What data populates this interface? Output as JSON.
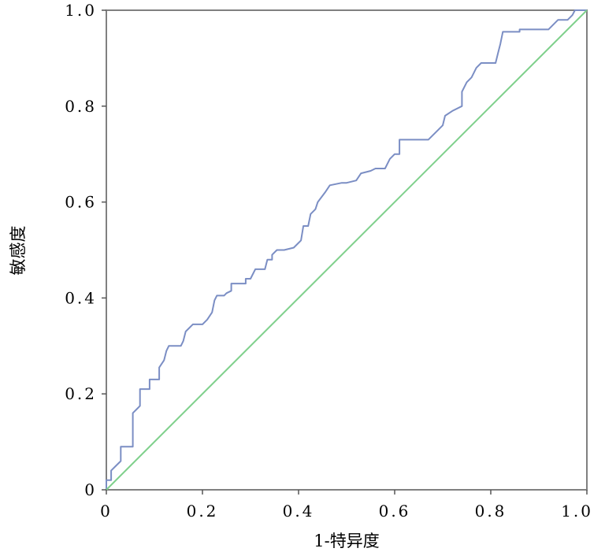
{
  "chart_data": {
    "type": "line",
    "title": "",
    "xlabel": "1-特异度",
    "ylabel": "敏感度",
    "xlim": [
      0,
      1
    ],
    "ylim": [
      0,
      1
    ],
    "x_ticks": [
      "0",
      "0.2",
      "0.4",
      "0.6",
      "0.8",
      "1.0"
    ],
    "y_ticks": [
      "0",
      "0.2",
      "0.4",
      "0.6",
      "0.8",
      "1.0"
    ],
    "grid": false,
    "legend": "none",
    "series": [
      {
        "color": "#7b8ec4",
        "points": [
          [
            0,
            0
          ],
          [
            0,
            0.02
          ],
          [
            0.01,
            0.02
          ],
          [
            0.01,
            0.04
          ],
          [
            0.02,
            0.05
          ],
          [
            0.03,
            0.06
          ],
          [
            0.03,
            0.09
          ],
          [
            0.055,
            0.09
          ],
          [
            0.055,
            0.16
          ],
          [
            0.065,
            0.17
          ],
          [
            0.07,
            0.175
          ],
          [
            0.07,
            0.21
          ],
          [
            0.09,
            0.21
          ],
          [
            0.09,
            0.23
          ],
          [
            0.11,
            0.23
          ],
          [
            0.11,
            0.255
          ],
          [
            0.12,
            0.27
          ],
          [
            0.125,
            0.29
          ],
          [
            0.13,
            0.3
          ],
          [
            0.155,
            0.3
          ],
          [
            0.16,
            0.31
          ],
          [
            0.165,
            0.33
          ],
          [
            0.18,
            0.345
          ],
          [
            0.2,
            0.345
          ],
          [
            0.21,
            0.355
          ],
          [
            0.22,
            0.37
          ],
          [
            0.225,
            0.395
          ],
          [
            0.23,
            0.405
          ],
          [
            0.245,
            0.405
          ],
          [
            0.25,
            0.41
          ],
          [
            0.26,
            0.415
          ],
          [
            0.26,
            0.43
          ],
          [
            0.29,
            0.43
          ],
          [
            0.29,
            0.44
          ],
          [
            0.3,
            0.44
          ],
          [
            0.31,
            0.46
          ],
          [
            0.33,
            0.46
          ],
          [
            0.335,
            0.48
          ],
          [
            0.345,
            0.48
          ],
          [
            0.345,
            0.49
          ],
          [
            0.355,
            0.5
          ],
          [
            0.37,
            0.5
          ],
          [
            0.39,
            0.505
          ],
          [
            0.405,
            0.52
          ],
          [
            0.41,
            0.55
          ],
          [
            0.42,
            0.55
          ],
          [
            0.425,
            0.575
          ],
          [
            0.435,
            0.585
          ],
          [
            0.44,
            0.6
          ],
          [
            0.455,
            0.62
          ],
          [
            0.465,
            0.635
          ],
          [
            0.49,
            0.64
          ],
          [
            0.5,
            0.64
          ],
          [
            0.52,
            0.645
          ],
          [
            0.53,
            0.66
          ],
          [
            0.55,
            0.665
          ],
          [
            0.56,
            0.67
          ],
          [
            0.58,
            0.67
          ],
          [
            0.59,
            0.69
          ],
          [
            0.6,
            0.7
          ],
          [
            0.61,
            0.7
          ],
          [
            0.61,
            0.73
          ],
          [
            0.67,
            0.73
          ],
          [
            0.69,
            0.75
          ],
          [
            0.7,
            0.76
          ],
          [
            0.705,
            0.78
          ],
          [
            0.72,
            0.79
          ],
          [
            0.74,
            0.8
          ],
          [
            0.74,
            0.83
          ],
          [
            0.75,
            0.85
          ],
          [
            0.76,
            0.86
          ],
          [
            0.77,
            0.88
          ],
          [
            0.78,
            0.89
          ],
          [
            0.81,
            0.89
          ],
          [
            0.815,
            0.91
          ],
          [
            0.82,
            0.93
          ],
          [
            0.825,
            0.955
          ],
          [
            0.86,
            0.955
          ],
          [
            0.86,
            0.96
          ],
          [
            0.92,
            0.96
          ],
          [
            0.93,
            0.97
          ],
          [
            0.94,
            0.98
          ],
          [
            0.96,
            0.98
          ],
          [
            0.97,
            0.99
          ],
          [
            0.975,
            1
          ],
          [
            1,
            1
          ]
        ]
      },
      {
        "color": "#7fd08c",
        "points": [
          [
            0,
            0
          ],
          [
            1,
            1
          ]
        ]
      }
    ]
  }
}
